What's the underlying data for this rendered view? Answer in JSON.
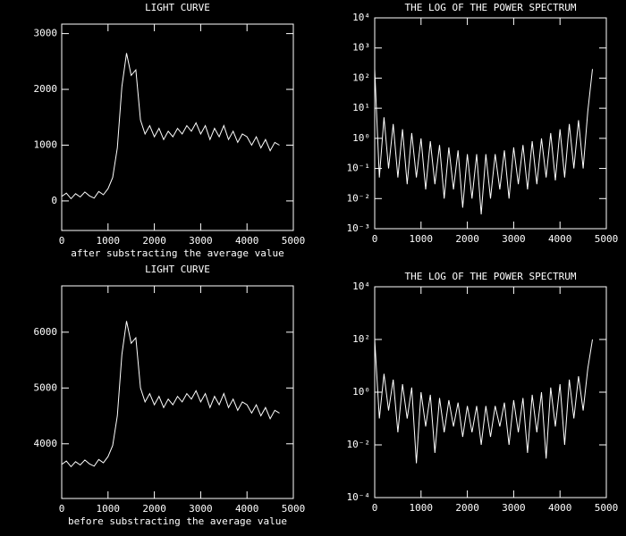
{
  "chart_data": [
    {
      "type": "line",
      "title": "LIGHT CURVE",
      "xlabel": "after substracting the average value",
      "color": "#ffffff",
      "log_y": false,
      "xlim": [
        0,
        5000
      ],
      "xticks": [
        0,
        1000,
        2000,
        3000,
        4000,
        5000
      ],
      "ylim": [
        -530,
        3170
      ],
      "yticks": [
        0,
        1000,
        2000,
        3000
      ],
      "x": [
        0,
        100,
        200,
        300,
        400,
        500,
        600,
        700,
        800,
        900,
        1000,
        1100,
        1200,
        1300,
        1400,
        1500,
        1600,
        1700,
        1800,
        1900,
        2000,
        2100,
        2200,
        2300,
        2400,
        2500,
        2600,
        2700,
        2800,
        2900,
        3000,
        3100,
        3200,
        3300,
        3400,
        3500,
        3600,
        3700,
        3800,
        3900,
        4000,
        4100,
        4200,
        4300,
        4400,
        4500,
        4600,
        4700
      ],
      "values": [
        80,
        140,
        40,
        130,
        70,
        160,
        90,
        50,
        170,
        110,
        220,
        420,
        950,
        2050,
        2650,
        2250,
        2350,
        1450,
        1200,
        1350,
        1150,
        1300,
        1100,
        1250,
        1150,
        1300,
        1200,
        1350,
        1250,
        1400,
        1200,
        1350,
        1100,
        1300,
        1150,
        1350,
        1100,
        1250,
        1050,
        1200,
        1150,
        1000,
        1150,
        950,
        1100,
        900,
        1050,
        1000
      ]
    },
    {
      "type": "line",
      "title": "THE LOG OF THE POWER SPECTRUM",
      "color": "#ffffff",
      "log_y": true,
      "xlim": [
        0,
        5000
      ],
      "xticks": [
        0,
        1000,
        2000,
        3000,
        4000,
        5000
      ],
      "ylim": [
        0.001,
        10000
      ],
      "yticks": [
        {
          "value": 0.001,
          "label": "10⁻³"
        },
        {
          "value": 0.01,
          "label": "10⁻²"
        },
        {
          "value": 0.1,
          "label": "10⁻¹"
        },
        {
          "value": 1,
          "label": "10⁰"
        },
        {
          "value": 10,
          "label": "10¹"
        },
        {
          "value": 100,
          "label": "10²"
        },
        {
          "value": 1000,
          "label": "10³"
        },
        {
          "value": 10000,
          "label": "10⁴"
        }
      ],
      "x": [
        0,
        100,
        200,
        300,
        400,
        500,
        600,
        700,
        800,
        900,
        1000,
        1100,
        1200,
        1300,
        1400,
        1500,
        1600,
        1700,
        1800,
        1900,
        2000,
        2100,
        2200,
        2300,
        2400,
        2500,
        2600,
        2700,
        2800,
        2900,
        3000,
        3100,
        3200,
        3300,
        3400,
        3500,
        3600,
        3700,
        3800,
        3900,
        4000,
        4100,
        4200,
        4300,
        4400,
        4500,
        4600,
        4700
      ],
      "values": [
        200,
        0.05,
        5,
        0.1,
        3,
        0.05,
        2,
        0.03,
        1.5,
        0.05,
        1,
        0.02,
        0.8,
        0.03,
        0.6,
        0.01,
        0.5,
        0.02,
        0.4,
        0.005,
        0.3,
        0.01,
        0.3,
        0.003,
        0.3,
        0.01,
        0.3,
        0.02,
        0.4,
        0.01,
        0.5,
        0.03,
        0.6,
        0.02,
        0.8,
        0.03,
        1,
        0.05,
        1.5,
        0.04,
        2,
        0.05,
        3,
        0.1,
        4,
        0.1,
        8,
        200
      ]
    },
    {
      "type": "line",
      "title": "LIGHT CURVE",
      "xlabel": "before substracting the average value",
      "color": "#ffffff",
      "log_y": false,
      "xlim": [
        0,
        5000
      ],
      "xticks": [
        0,
        1000,
        2000,
        3000,
        4000,
        5000
      ],
      "ylim": [
        3020,
        6830
      ],
      "yticks": [
        4000,
        5000,
        6000
      ],
      "x": [
        0,
        100,
        200,
        300,
        400,
        500,
        600,
        700,
        800,
        900,
        1000,
        1100,
        1200,
        1300,
        1400,
        1500,
        1600,
        1700,
        1800,
        1900,
        2000,
        2100,
        2200,
        2300,
        2400,
        2500,
        2600,
        2700,
        2800,
        2900,
        3000,
        3100,
        3200,
        3300,
        3400,
        3500,
        3600,
        3700,
        3800,
        3900,
        4000,
        4100,
        4200,
        4300,
        4400,
        4500,
        4600,
        4700
      ],
      "values": [
        3630,
        3690,
        3590,
        3680,
        3620,
        3710,
        3640,
        3600,
        3720,
        3660,
        3770,
        3970,
        4500,
        5600,
        6200,
        5800,
        5900,
        5000,
        4750,
        4900,
        4700,
        4850,
        4650,
        4800,
        4700,
        4850,
        4750,
        4900,
        4800,
        4950,
        4750,
        4900,
        4650,
        4850,
        4700,
        4900,
        4650,
        4800,
        4600,
        4750,
        4700,
        4550,
        4700,
        4500,
        4650,
        4450,
        4600,
        4550
      ]
    },
    {
      "type": "line",
      "title": "THE LOG OF THE POWER SPECTRUM",
      "color": "#ffffff",
      "log_y": true,
      "xlim": [
        0,
        5000
      ],
      "xticks": [
        0,
        1000,
        2000,
        3000,
        4000,
        5000
      ],
      "ylim": [
        0.0001,
        10000
      ],
      "yticks": [
        {
          "value": 0.0001,
          "label": "10⁻⁴"
        },
        {
          "value": 0.01,
          "label": "10⁻²"
        },
        {
          "value": 1,
          "label": "10⁰"
        },
        {
          "value": 100,
          "label": "10²"
        },
        {
          "value": 10000,
          "label": "10⁴"
        }
      ],
      "x": [
        0,
        100,
        200,
        300,
        400,
        500,
        600,
        700,
        800,
        900,
        1000,
        1100,
        1200,
        1300,
        1400,
        1500,
        1600,
        1700,
        1800,
        1900,
        2000,
        2100,
        2200,
        2300,
        2400,
        2500,
        2600,
        2700,
        2800,
        2900,
        3000,
        3100,
        3200,
        3300,
        3400,
        3500,
        3600,
        3700,
        3800,
        3900,
        4000,
        4100,
        4200,
        4300,
        4400,
        4500,
        4600,
        4700
      ],
      "values": [
        100,
        0.1,
        5,
        0.2,
        3,
        0.03,
        2,
        0.1,
        1.5,
        0.002,
        1,
        0.05,
        0.8,
        0.005,
        0.6,
        0.03,
        0.5,
        0.05,
        0.4,
        0.02,
        0.3,
        0.03,
        0.3,
        0.01,
        0.3,
        0.02,
        0.3,
        0.05,
        0.4,
        0.01,
        0.5,
        0.03,
        0.6,
        0.005,
        0.8,
        0.03,
        1,
        0.003,
        1.5,
        0.05,
        2,
        0.01,
        3,
        0.1,
        4,
        0.2,
        8,
        100
      ]
    }
  ]
}
